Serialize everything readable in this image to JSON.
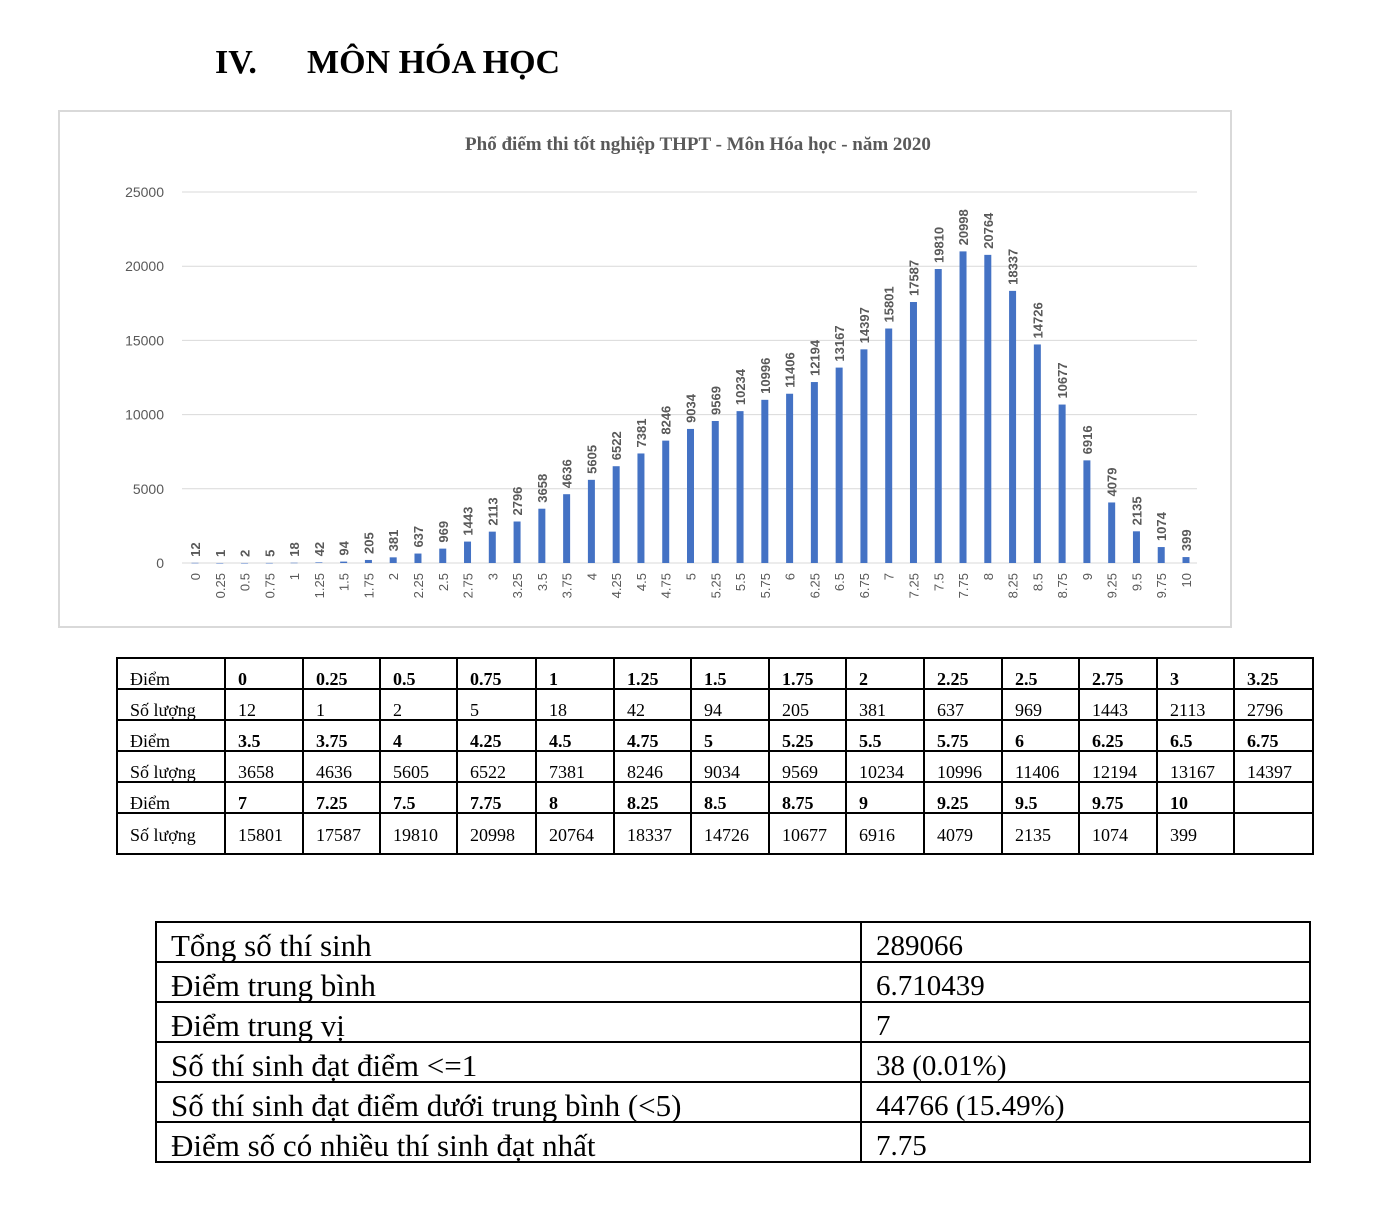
{
  "heading": {
    "number": "IV.",
    "title": "MÔN HÓA HỌC"
  },
  "chart_data": {
    "type": "bar",
    "title": "Phổ điểm thi tốt nghiệp THPT - Môn Hóa học - năm 2020",
    "xlabel": "",
    "ylabel": "",
    "ylim": [
      0,
      25000
    ],
    "yticks": [
      "0",
      "5000",
      "10000",
      "15000",
      "20000",
      "25000"
    ],
    "grid": true,
    "data_labels": true,
    "bar_color": "#4472C4",
    "categories": [
      "0",
      "0.25",
      "0.5",
      "0.75",
      "1",
      "1.25",
      "1.5",
      "1.75",
      "2",
      "2.25",
      "2.5",
      "2.75",
      "3",
      "3.25",
      "3.5",
      "3.75",
      "4",
      "4.25",
      "4.5",
      "4.75",
      "5",
      "5.25",
      "5.5",
      "5.75",
      "6",
      "6.25",
      "6.5",
      "6.75",
      "7",
      "7.25",
      "7.5",
      "7.75",
      "8",
      "8.25",
      "8.5",
      "8.75",
      "9",
      "9.25",
      "9.5",
      "9.75",
      "10"
    ],
    "values": [
      12,
      1,
      2,
      5,
      18,
      42,
      94,
      205,
      381,
      637,
      969,
      1443,
      2113,
      2796,
      3658,
      4636,
      5605,
      6522,
      7381,
      8246,
      9034,
      9569,
      10234,
      10996,
      11406,
      12194,
      13167,
      14397,
      15801,
      17587,
      19810,
      20998,
      20764,
      18337,
      14726,
      10677,
      6916,
      4079,
      2135,
      1074,
      399
    ]
  },
  "score_table": {
    "score_label": "Điểm",
    "count_label": "Số lượng",
    "blocks": [
      {
        "scores": [
          "0",
          "0.25",
          "0.5",
          "0.75",
          "1",
          "1.25",
          "1.5",
          "1.75",
          "2",
          "2.25",
          "2.5",
          "2.75",
          "3",
          "3.25"
        ],
        "counts": [
          "12",
          "1",
          "2",
          "5",
          "18",
          "42",
          "94",
          "205",
          "381",
          "637",
          "969",
          "1443",
          "2113",
          "2796"
        ]
      },
      {
        "scores": [
          "3.5",
          "3.75",
          "4",
          "4.25",
          "4.5",
          "4.75",
          "5",
          "5.25",
          "5.5",
          "5.75",
          "6",
          "6.25",
          "6.5",
          "6.75"
        ],
        "counts": [
          "3658",
          "4636",
          "5605",
          "6522",
          "7381",
          "8246",
          "9034",
          "9569",
          "10234",
          "10996",
          "11406",
          "12194",
          "13167",
          "14397"
        ]
      },
      {
        "scores": [
          "7",
          "7.25",
          "7.5",
          "7.75",
          "8",
          "8.25",
          "8.5",
          "8.75",
          "9",
          "9.25",
          "9.5",
          "9.75",
          "10",
          ""
        ],
        "counts": [
          "15801",
          "17587",
          "19810",
          "20998",
          "20764",
          "18337",
          "14726",
          "10677",
          "6916",
          "4079",
          "2135",
          "1074",
          "399",
          ""
        ]
      }
    ]
  },
  "summary_table": [
    {
      "label": "Tổng số thí sinh",
      "value": "289066"
    },
    {
      "label": "Điểm trung bình",
      "value": "6.710439"
    },
    {
      "label": "Điểm trung vị",
      "value": "7"
    },
    {
      "label": "Số thí sinh đạt điểm <=1",
      "value": "38 (0.01%)"
    },
    {
      "label": "Số thí sinh đạt điểm dưới trung bình (<5)",
      "value": "44766 (15.49%)"
    },
    {
      "label": "Điểm số có nhiều thí sinh đạt nhất",
      "value": "7.75"
    }
  ]
}
